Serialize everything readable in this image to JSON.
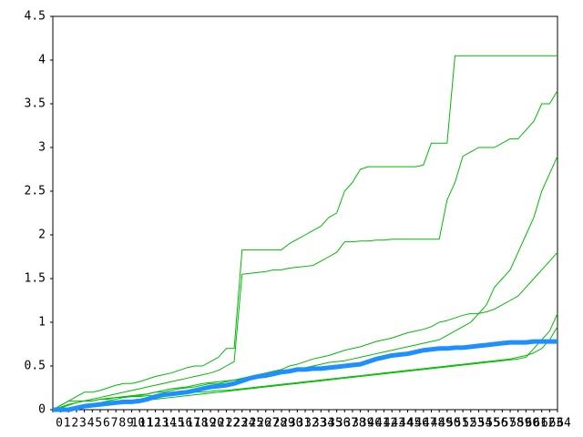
{
  "chart_data": {
    "type": "line",
    "x": [
      0,
      1,
      2,
      3,
      4,
      5,
      6,
      7,
      8,
      9,
      10,
      11,
      12,
      13,
      14,
      15,
      16,
      17,
      18,
      19,
      20,
      21,
      22,
      23,
      24,
      25,
      26,
      27,
      28,
      29,
      30,
      31,
      32,
      33,
      34,
      35,
      36,
      37,
      38,
      39,
      40,
      41,
      42,
      43,
      44,
      45,
      46,
      47,
      48,
      49,
      50,
      51,
      52,
      53,
      54,
      55,
      56,
      57,
      58,
      59,
      60,
      61,
      62,
      63,
      64
    ],
    "xlim": [
      0,
      64
    ],
    "xticks": [
      0,
      1,
      2,
      3,
      4,
      5,
      6,
      7,
      8,
      9,
      10,
      11,
      12,
      13,
      14,
      15,
      16,
      17,
      18,
      19,
      20,
      21,
      22,
      23,
      24,
      25,
      26,
      27,
      28,
      29,
      30,
      31,
      32,
      33,
      34,
      35,
      36,
      37,
      38,
      39,
      40,
      41,
      42,
      43,
      44,
      45,
      46,
      47,
      48,
      49,
      50,
      51,
      52,
      53,
      54,
      55,
      56,
      57,
      58,
      59,
      60,
      61,
      62,
      63,
      64
    ],
    "ylim": [
      0,
      4.5
    ],
    "yticks": [
      0,
      0.5,
      1,
      1.5,
      2,
      2.5,
      3,
      3.5,
      4,
      4.5
    ],
    "grid": false,
    "series": [
      {
        "color": "#00bb00",
        "width": 1,
        "values": [
          0,
          0.05,
          0.1,
          0.15,
          0.2,
          0.2,
          0.22,
          0.25,
          0.28,
          0.3,
          0.3,
          0.32,
          0.35,
          0.38,
          0.4,
          0.42,
          0.45,
          0.48,
          0.5,
          0.5,
          0.55,
          0.6,
          0.7,
          0.7,
          1.83,
          1.83,
          1.83,
          1.83,
          1.83,
          1.83,
          1.9,
          1.95,
          2.0,
          2.05,
          2.1,
          2.2,
          2.25,
          2.5,
          2.6,
          2.75,
          2.78,
          2.78,
          2.78,
          2.78,
          2.78,
          2.78,
          2.78,
          2.8,
          3.05,
          3.05,
          3.05,
          4.05,
          4.05,
          4.05,
          4.05,
          4.05,
          4.05,
          4.05,
          4.05,
          4.05,
          4.05,
          4.05,
          4.05,
          4.05,
          4.05
        ]
      },
      {
        "color": "#00bb00",
        "width": 1,
        "values": [
          0,
          0.02,
          0.05,
          0.08,
          0.1,
          0.12,
          0.14,
          0.16,
          0.18,
          0.2,
          0.22,
          0.24,
          0.26,
          0.28,
          0.3,
          0.32,
          0.34,
          0.36,
          0.38,
          0.4,
          0.42,
          0.45,
          0.5,
          0.55,
          1.55,
          1.56,
          1.57,
          1.58,
          1.6,
          1.6,
          1.62,
          1.63,
          1.64,
          1.65,
          1.7,
          1.75,
          1.8,
          1.92,
          1.92,
          1.93,
          1.93,
          1.94,
          1.94,
          1.95,
          1.95,
          1.95,
          1.95,
          1.95,
          1.95,
          1.95,
          2.4,
          2.6,
          2.9,
          2.95,
          3.0,
          3.0,
          3.0,
          3.05,
          3.1,
          3.1,
          3.2,
          3.3,
          3.5,
          3.5,
          3.65
        ]
      },
      {
        "color": "#00bb00",
        "width": 1,
        "values": [
          0,
          0,
          0.02,
          0.04,
          0.05,
          0.06,
          0.08,
          0.1,
          0.12,
          0.14,
          0.15,
          0.16,
          0.18,
          0.2,
          0.22,
          0.24,
          0.25,
          0.26,
          0.28,
          0.3,
          0.31,
          0.32,
          0.33,
          0.34,
          0.35,
          0.36,
          0.38,
          0.4,
          0.42,
          0.44,
          0.45,
          0.46,
          0.48,
          0.5,
          0.52,
          0.54,
          0.55,
          0.56,
          0.58,
          0.6,
          0.62,
          0.64,
          0.66,
          0.68,
          0.7,
          0.72,
          0.74,
          0.76,
          0.78,
          0.8,
          0.85,
          0.9,
          0.95,
          1.0,
          1.1,
          1.2,
          1.4,
          1.5,
          1.6,
          1.8,
          2.0,
          2.2,
          2.5,
          2.7,
          2.9
        ]
      },
      {
        "color": "#00bb00",
        "width": 1,
        "values": [
          0,
          0.03,
          0.06,
          0.08,
          0.1,
          0.1,
          0.12,
          0.13,
          0.14,
          0.15,
          0.16,
          0.17,
          0.18,
          0.2,
          0.2,
          0.22,
          0.24,
          0.25,
          0.26,
          0.28,
          0.3,
          0.3,
          0.32,
          0.34,
          0.36,
          0.38,
          0.4,
          0.42,
          0.44,
          0.46,
          0.5,
          0.52,
          0.55,
          0.58,
          0.6,
          0.62,
          0.65,
          0.68,
          0.7,
          0.72,
          0.75,
          0.78,
          0.8,
          0.82,
          0.85,
          0.88,
          0.9,
          0.92,
          0.95,
          1.0,
          1.02,
          1.05,
          1.08,
          1.1,
          1.1,
          1.12,
          1.15,
          1.2,
          1.25,
          1.3,
          1.4,
          1.5,
          1.6,
          1.7,
          1.8
        ]
      },
      {
        "color": "#00bb00",
        "width": 1,
        "values": [
          0,
          0.05,
          0.1,
          0.1,
          0.1,
          0.1,
          0.12,
          0.12,
          0.14,
          0.14,
          0.15,
          0.15,
          0.16,
          0.16,
          0.17,
          0.18,
          0.18,
          0.19,
          0.2,
          0.2,
          0.21,
          0.22,
          0.22,
          0.23,
          0.24,
          0.25,
          0.26,
          0.27,
          0.28,
          0.29,
          0.3,
          0.31,
          0.32,
          0.33,
          0.34,
          0.35,
          0.36,
          0.37,
          0.38,
          0.39,
          0.4,
          0.41,
          0.42,
          0.43,
          0.44,
          0.45,
          0.46,
          0.47,
          0.48,
          0.49,
          0.5,
          0.51,
          0.52,
          0.53,
          0.54,
          0.55,
          0.56,
          0.57,
          0.58,
          0.6,
          0.62,
          0.65,
          0.7,
          0.8,
          0.95
        ]
      },
      {
        "color": "#00bb00",
        "width": 1,
        "values": [
          0,
          0,
          0.01,
          0.02,
          0.03,
          0.04,
          0.05,
          0.06,
          0.07,
          0.08,
          0.09,
          0.1,
          0.11,
          0.12,
          0.13,
          0.14,
          0.15,
          0.16,
          0.17,
          0.18,
          0.19,
          0.2,
          0.21,
          0.22,
          0.23,
          0.24,
          0.25,
          0.26,
          0.27,
          0.28,
          0.29,
          0.3,
          0.31,
          0.32,
          0.33,
          0.34,
          0.35,
          0.36,
          0.37,
          0.38,
          0.39,
          0.4,
          0.41,
          0.42,
          0.43,
          0.44,
          0.45,
          0.46,
          0.47,
          0.48,
          0.49,
          0.5,
          0.51,
          0.52,
          0.53,
          0.54,
          0.55,
          0.56,
          0.57,
          0.58,
          0.6,
          0.7,
          0.8,
          0.9,
          1.1
        ]
      },
      {
        "color": "#1e8fff",
        "width": 5,
        "values": [
          0,
          0,
          0,
          0.02,
          0.04,
          0.05,
          0.06,
          0.07,
          0.08,
          0.09,
          0.09,
          0.1,
          0.12,
          0.15,
          0.17,
          0.18,
          0.19,
          0.2,
          0.22,
          0.24,
          0.26,
          0.27,
          0.28,
          0.3,
          0.33,
          0.36,
          0.38,
          0.39,
          0.41,
          0.43,
          0.44,
          0.46,
          0.46,
          0.47,
          0.47,
          0.48,
          0.49,
          0.5,
          0.51,
          0.52,
          0.55,
          0.58,
          0.6,
          0.62,
          0.63,
          0.64,
          0.66,
          0.68,
          0.69,
          0.7,
          0.7,
          0.71,
          0.71,
          0.72,
          0.73,
          0.74,
          0.75,
          0.76,
          0.77,
          0.77,
          0.77,
          0.78,
          0.78,
          0.78,
          0.78
        ]
      }
    ]
  }
}
